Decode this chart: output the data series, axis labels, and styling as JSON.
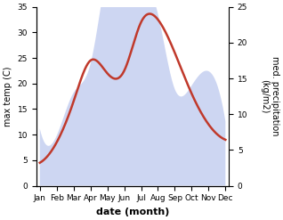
{
  "months": [
    "Jan",
    "Feb",
    "Mar",
    "Apr",
    "May",
    "Jun",
    "Jul",
    "Aug",
    "Sep",
    "Oct",
    "Nov",
    "Dec"
  ],
  "temperature": [
    4.5,
    8.5,
    16.5,
    24.5,
    22.0,
    22.5,
    32.0,
    32.5,
    26.0,
    18.0,
    12.0,
    9.0
  ],
  "precipitation": [
    8.0,
    7.0,
    13.0,
    17.0,
    30.0,
    33.5,
    30.0,
    24.0,
    13.5,
    14.0,
    16.0,
    9.0
  ],
  "temp_color": "#c0392b",
  "precip_color_fill": "#c5cff0",
  "ylim_left": [
    0,
    35
  ],
  "ylim_right": [
    0,
    25
  ],
  "yticks_left": [
    0,
    5,
    10,
    15,
    20,
    25,
    30,
    35
  ],
  "yticks_right": [
    0,
    5,
    10,
    15,
    20,
    25
  ],
  "xlabel": "date (month)",
  "ylabel_left": "max temp (C)",
  "ylabel_right": "med. precipitation\n(kg/m2)",
  "bg_color": "#ffffff",
  "temp_linewidth": 1.8,
  "label_fontsize": 7,
  "tick_fontsize": 6.5,
  "xlabel_fontsize": 8
}
